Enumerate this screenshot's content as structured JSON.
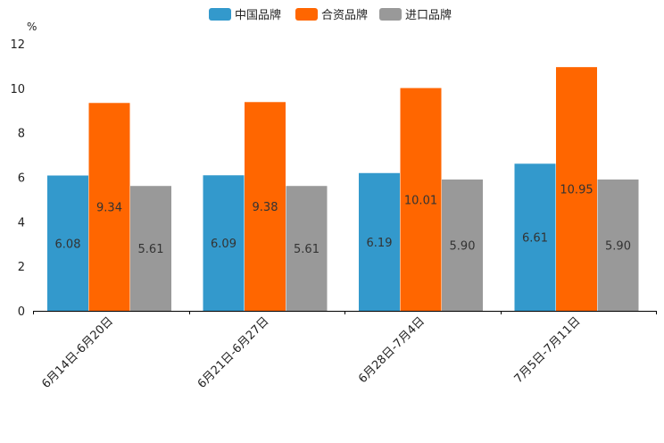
{
  "chart_data": {
    "type": "bar",
    "title": "",
    "xlabel": "",
    "ylabel": "%",
    "ylim": [
      0,
      12
    ],
    "yticks": [
      "0",
      "2",
      "4",
      "6",
      "8",
      "10",
      "12"
    ],
    "grid": false,
    "legend_position": "top-center",
    "categories": [
      "6月14日-6月20日",
      "6月21日-6月27日",
      "6月28日-7月4日",
      "7月5日-7月11日"
    ],
    "series": [
      {
        "name": "中国品牌",
        "color": "#3399cc",
        "values": [
          6.08,
          6.09,
          6.19,
          6.61
        ],
        "labels": [
          "6.08",
          "6.09",
          "6.19",
          "6.61"
        ]
      },
      {
        "name": "合资品牌",
        "color": "#ff6600",
        "values": [
          9.34,
          9.38,
          10.01,
          10.95
        ],
        "labels": [
          "9.34",
          "9.38",
          "10.01",
          "10.95"
        ]
      },
      {
        "name": "进口品牌",
        "color": "#999999",
        "values": [
          5.61,
          5.61,
          5.9,
          5.9
        ],
        "labels": [
          "5.61",
          "5.61",
          "5.90",
          "5.90"
        ]
      }
    ]
  }
}
